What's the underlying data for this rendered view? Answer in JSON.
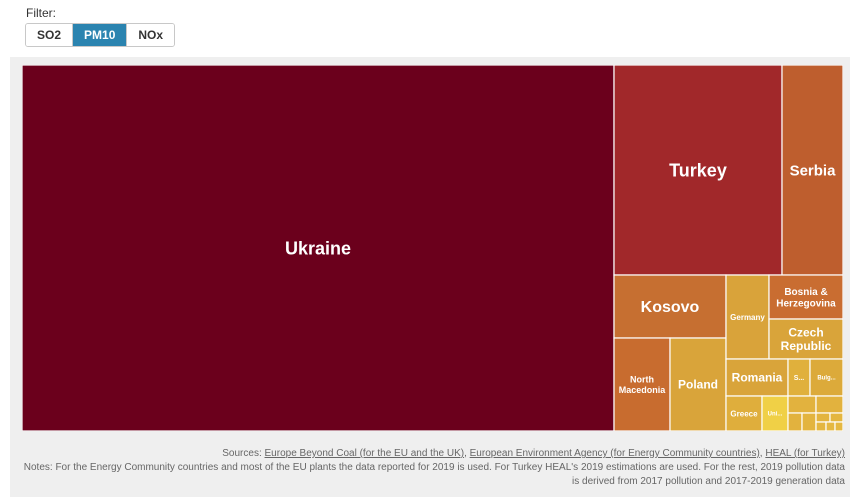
{
  "filter": {
    "label": "Filter:",
    "options": [
      "SO2",
      "PM10",
      "NOx"
    ],
    "selected": "PM10",
    "accent_color": "#2b84b0"
  },
  "chart_data": {
    "type": "treemap",
    "title": "",
    "metric": "PM10",
    "items": [
      {
        "label": "Ukraine",
        "value": 392,
        "color": "#6b001c"
      },
      {
        "label": "Turkey",
        "value": 73.6,
        "color": "#a1282a"
      },
      {
        "label": "Serbia",
        "value": 25.9,
        "color": "#be5e2e"
      },
      {
        "label": "Kosovo",
        "value": 13.0,
        "color": "#c66f31"
      },
      {
        "label": "North Macedonia",
        "value": 9.3,
        "color": "#c86c2f"
      },
      {
        "label": "Poland",
        "value": 8.8,
        "color": "#d9a43a"
      },
      {
        "label": "Germany",
        "value": 6.8,
        "color": "#d9a33a"
      },
      {
        "label": "Bosnia & Herzegovina",
        "value": 6.4,
        "color": "#c96d31"
      },
      {
        "label": "Czech Republic",
        "value": 5.6,
        "color": "#d9a43a"
      },
      {
        "label": "Romania",
        "value": 5.4,
        "color": "#d9a43a"
      },
      {
        "label": "S...",
        "value": 1.7,
        "color": "#e0b03c"
      },
      {
        "label": "Bulg...",
        "value": 2.4,
        "color": "#dcaa3a"
      },
      {
        "label": "Greece",
        "value": 2.7,
        "color": "#dfae3c"
      },
      {
        "label": "Uni...",
        "value": 1.6,
        "color": "#f0d046"
      },
      {
        "label": "",
        "value": 0.6,
        "color": "#e2b23e"
      },
      {
        "label": "",
        "value": 0.6,
        "color": "#e2b23e"
      },
      {
        "label": "",
        "value": 0.5,
        "color": "#e2b23e"
      },
      {
        "label": "",
        "value": 0.4,
        "color": "#e3b43f"
      },
      {
        "label": "",
        "value": 0.4,
        "color": "#e3b43f"
      },
      {
        "label": "",
        "value": 0.3,
        "color": "#e4b640"
      },
      {
        "label": "",
        "value": 0.3,
        "color": "#e4b640"
      },
      {
        "label": "",
        "value": 0.2,
        "color": "#e5b841"
      },
      {
        "label": "",
        "value": 0.2,
        "color": "#e5b841"
      }
    ]
  },
  "sources": {
    "prefix": "Sources: ",
    "links": [
      "Europe Beyond Coal (for the EU and the UK)",
      "European Environment Agency (for Energy Community countries)",
      "HEAL (for Turkey)"
    ],
    "notes": "Notes: For the Energy Community countries and most of the EU plants the data reported for 2019 is used. For Turkey HEAL's 2019 estimations are used. For the rest, 2019 pollution data is derived from 2017 pollution and 2017-2019 generation data"
  }
}
